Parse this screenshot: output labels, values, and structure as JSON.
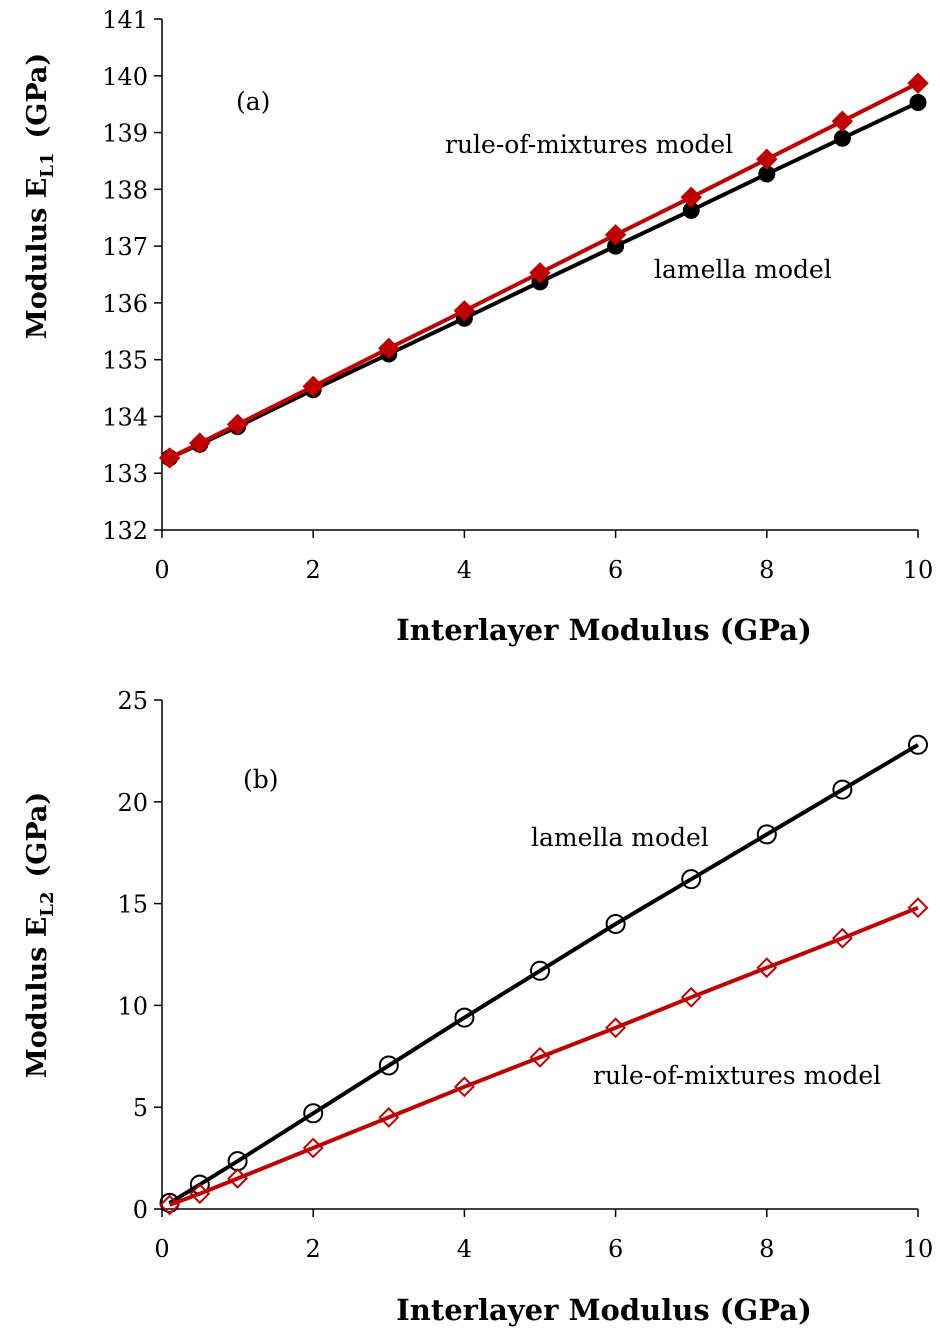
{
  "chart_data": [
    {
      "type": "line",
      "panel_label": "(a)",
      "xlabel": "Interlayer Modulus (GPa)",
      "ylabel": "Modulus E",
      "ylabel_sub": "L1",
      "ylabel_unit": "(GPa)",
      "xlim": [
        0,
        10
      ],
      "ylim": [
        132,
        141
      ],
      "xticks": [
        0,
        2,
        4,
        6,
        8,
        10
      ],
      "yticks": [
        132,
        133,
        134,
        135,
        136,
        137,
        138,
        139,
        140,
        141
      ],
      "grid": false,
      "x": [
        0.1,
        0.5,
        1,
        2,
        3,
        4,
        5,
        6,
        7,
        8,
        9,
        10
      ],
      "series": [
        {
          "name": "lamella model",
          "color": "#000000",
          "marker": "filled-circle",
          "values": [
            133.27,
            133.51,
            133.82,
            134.47,
            135.1,
            135.73,
            136.37,
            137.0,
            137.63,
            138.27,
            138.9,
            139.53
          ]
        },
        {
          "name": "rule-of-mixtures model",
          "color": "#c00000",
          "marker": "filled-diamond",
          "values": [
            133.27,
            133.53,
            133.86,
            134.53,
            135.2,
            135.86,
            136.53,
            137.2,
            137.86,
            138.53,
            139.2,
            139.87
          ]
        }
      ]
    },
    {
      "type": "line",
      "panel_label": "(b)",
      "xlabel": "Interlayer Modulus (GPa)",
      "ylabel": "Modulus E",
      "ylabel_sub": "L2",
      "ylabel_unit": "(GPa)",
      "xlim": [
        0,
        10
      ],
      "ylim": [
        0,
        25
      ],
      "xticks": [
        0,
        2,
        4,
        6,
        8,
        10
      ],
      "yticks": [
        0,
        5,
        10,
        15,
        20,
        25
      ],
      "grid": false,
      "x": [
        0.1,
        0.5,
        1,
        2,
        3,
        4,
        5,
        6,
        7,
        8,
        9,
        10
      ],
      "series": [
        {
          "name": "lamella model",
          "color": "#000000",
          "marker": "open-circle",
          "values": [
            0.3,
            1.2,
            2.35,
            4.7,
            7.05,
            9.4,
            11.7,
            14.0,
            16.2,
            18.4,
            20.6,
            22.8
          ]
        },
        {
          "name": "rule-of-mixtures model",
          "color": "#c00000",
          "marker": "open-diamond",
          "values": [
            0.2,
            0.75,
            1.5,
            3.0,
            4.5,
            6.0,
            7.45,
            8.9,
            10.4,
            11.85,
            13.3,
            14.8
          ]
        }
      ]
    }
  ]
}
